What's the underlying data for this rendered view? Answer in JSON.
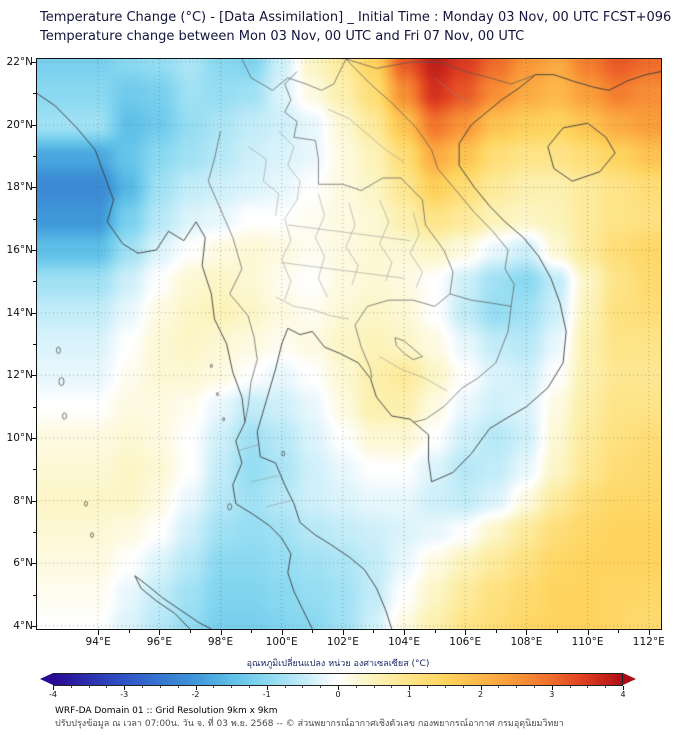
{
  "header": {
    "title_line1": "Temperature Change (°C) - [Data Assimilation] _ Initial Time : Monday 03 Nov, 00 UTC FCST+096",
    "title_line2": "Temperature change between Mon 03 Nov, 00 UTC and Fri 07 Nov, 00 UTC"
  },
  "axes": {
    "lon_range": [
      92.0,
      112.4
    ],
    "lat_range": [
      3.9,
      22.1
    ],
    "x_ticks": [
      {
        "v": 94,
        "label": "94°E"
      },
      {
        "v": 96,
        "label": "96°E"
      },
      {
        "v": 98,
        "label": "98°E"
      },
      {
        "v": 100,
        "label": "100°E"
      },
      {
        "v": 102,
        "label": "102°E"
      },
      {
        "v": 104,
        "label": "104°E"
      },
      {
        "v": 106,
        "label": "106°E"
      },
      {
        "v": 108,
        "label": "108°E"
      },
      {
        "v": 110,
        "label": "110°E"
      },
      {
        "v": 112,
        "label": "112°E"
      }
    ],
    "y_ticks": [
      {
        "v": 22,
        "label": "22°N"
      },
      {
        "v": 20,
        "label": "20°N"
      },
      {
        "v": 18,
        "label": "18°N"
      },
      {
        "v": 16,
        "label": "16°N"
      },
      {
        "v": 14,
        "label": "14°N"
      },
      {
        "v": 12,
        "label": "12°N"
      },
      {
        "v": 10,
        "label": "10°N"
      },
      {
        "v": 8,
        "label": "8°N"
      },
      {
        "v": 6,
        "label": "6°N"
      },
      {
        "v": 4,
        "label": "4°N"
      }
    ],
    "grid": true
  },
  "chart_data": {
    "type": "heatmap",
    "title": "Temperature Change (°C) - [Data Assimilation] _ Initial Time : Monday 03 Nov, 00 UTC FCST+096",
    "subtitle": "Temperature change between Mon 03 Nov, 00 UTC and Fri 07 Nov, 00 UTC",
    "x": [
      94,
      95,
      96,
      97,
      98,
      99,
      100,
      101,
      102,
      103,
      104,
      105,
      106,
      107,
      108,
      109,
      110,
      111,
      112
    ],
    "y": [
      22,
      21,
      20,
      19,
      18,
      17,
      16,
      15,
      14,
      13,
      12,
      11,
      10,
      9,
      8,
      7,
      6,
      5,
      4
    ],
    "values": [
      [
        -1.2,
        -1.0,
        -0.9,
        -0.7,
        -1.0,
        -1.1,
        -0.4,
        0.4,
        0.8,
        1.5,
        3.2,
        3.8,
        3.5,
        3.0,
        2.5,
        2.2,
        2.8,
        3.2,
        3.0
      ],
      [
        -1.0,
        -1.3,
        -1.2,
        -0.8,
        -0.9,
        -0.8,
        -0.3,
        0.2,
        0.6,
        1.2,
        2.6,
        3.6,
        3.2,
        2.6,
        2.2,
        2.0,
        2.4,
        2.8,
        2.6
      ],
      [
        -0.8,
        -1.5,
        -1.3,
        -0.9,
        -0.7,
        -0.5,
        -0.4,
        -0.2,
        0.3,
        0.8,
        1.8,
        2.9,
        2.5,
        1.8,
        1.6,
        1.5,
        1.8,
        2.2,
        2.4
      ],
      [
        -1.8,
        -1.4,
        -1.0,
        -0.8,
        -0.6,
        -0.4,
        -0.3,
        -0.2,
        0.2,
        0.5,
        1.2,
        2.2,
        1.8,
        1.2,
        1.0,
        1.0,
        1.2,
        1.5,
        1.8
      ],
      [
        -2.2,
        -1.6,
        -0.8,
        -0.5,
        -0.4,
        -0.3,
        -0.2,
        0.0,
        0.2,
        0.4,
        0.9,
        1.6,
        1.2,
        0.8,
        0.6,
        0.6,
        0.8,
        1.0,
        1.2
      ],
      [
        -2.0,
        -1.2,
        -0.6,
        -0.3,
        -0.2,
        0.0,
        0.0,
        0.1,
        0.2,
        0.3,
        0.6,
        1.0,
        0.8,
        0.5,
        0.4,
        0.5,
        0.8,
        1.0,
        1.1
      ],
      [
        -1.5,
        -0.8,
        -0.3,
        0.0,
        0.2,
        0.3,
        0.2,
        0.1,
        0.2,
        0.3,
        0.3,
        0.4,
        0.2,
        -0.2,
        -0.4,
        0.3,
        0.8,
        1.2,
        1.4
      ],
      [
        -0.8,
        -0.4,
        0.0,
        0.3,
        0.4,
        0.3,
        0.1,
        0.0,
        0.2,
        0.3,
        0.2,
        0.0,
        -0.4,
        -0.8,
        -1.0,
        -0.5,
        0.4,
        1.0,
        1.3
      ],
      [
        -0.5,
        -0.2,
        0.2,
        0.4,
        0.5,
        0.4,
        0.2,
        0.1,
        0.3,
        0.4,
        0.3,
        0.0,
        -0.5,
        -0.9,
        -0.8,
        -0.4,
        0.5,
        1.1,
        1.2
      ],
      [
        -0.3,
        0.0,
        0.3,
        0.4,
        0.3,
        0.2,
        0.1,
        0.2,
        0.4,
        0.5,
        0.4,
        0.2,
        -0.2,
        -0.5,
        -0.6,
        -0.2,
        0.6,
        1.0,
        1.0
      ],
      [
        -0.2,
        0.1,
        0.3,
        0.3,
        0.2,
        0.0,
        -0.2,
        0.0,
        0.3,
        0.6,
        0.8,
        0.4,
        0.0,
        -0.3,
        -0.4,
        0.0,
        0.6,
        0.9,
        0.9
      ],
      [
        0.0,
        0.2,
        0.2,
        0.1,
        -0.2,
        -0.5,
        -0.4,
        -0.2,
        0.2,
        0.6,
        0.6,
        0.2,
        -0.2,
        -0.4,
        -0.3,
        0.2,
        0.7,
        1.0,
        1.0
      ],
      [
        0.2,
        0.3,
        0.2,
        0.0,
        -0.4,
        -0.8,
        -0.6,
        -0.3,
        0.0,
        0.3,
        0.3,
        0.0,
        -0.4,
        -0.6,
        -0.4,
        0.3,
        0.8,
        1.1,
        1.2
      ],
      [
        0.3,
        0.4,
        0.3,
        0.0,
        -0.5,
        -0.9,
        -0.7,
        -0.4,
        -0.2,
        0.0,
        0.0,
        -0.3,
        -0.6,
        -0.5,
        -0.2,
        0.4,
        0.9,
        1.2,
        1.3
      ],
      [
        0.4,
        0.4,
        0.2,
        -0.2,
        -0.6,
        -0.8,
        -0.6,
        -0.4,
        -0.3,
        -0.2,
        -0.2,
        -0.4,
        -0.5,
        -0.3,
        0.2,
        0.8,
        1.2,
        1.4,
        1.4
      ],
      [
        0.3,
        0.2,
        0.0,
        -0.4,
        -0.8,
        -0.9,
        -0.8,
        -0.6,
        -0.5,
        -0.4,
        -0.3,
        -0.2,
        0.0,
        0.4,
        0.8,
        1.2,
        1.4,
        1.5,
        1.5
      ],
      [
        0.2,
        0.0,
        -0.3,
        -0.6,
        -1.0,
        -1.0,
        -0.9,
        -0.8,
        -0.7,
        -0.5,
        -0.2,
        0.2,
        0.5,
        0.8,
        1.1,
        1.4,
        1.5,
        1.5,
        1.5
      ],
      [
        0.1,
        -0.2,
        -0.5,
        -0.8,
        -1.1,
        -1.1,
        -1.0,
        -0.9,
        -0.8,
        -0.5,
        0.0,
        0.4,
        0.8,
        1.1,
        1.3,
        1.5,
        1.5,
        1.4,
        1.4
      ],
      [
        0.0,
        -0.3,
        -0.6,
        -0.9,
        -1.2,
        -1.2,
        -1.1,
        -1.0,
        -0.8,
        -0.4,
        0.2,
        0.6,
        1.0,
        1.2,
        1.4,
        1.5,
        1.5,
        1.4,
        1.3
      ]
    ],
    "colorbar": {
      "label": "อุณหภูมิเปลี่ยนแปลง หน่วย องศาเซลเซียส (°C)",
      "min": -4,
      "max": 4,
      "ticks": [
        -4,
        -3,
        -2,
        -1,
        0,
        1,
        2,
        3,
        4
      ],
      "stops": [
        [
          -4.0,
          "#2a0a94"
        ],
        [
          -3.0,
          "#2f55c7"
        ],
        [
          -2.0,
          "#3f97d8"
        ],
        [
          -1.5,
          "#5fc0e8"
        ],
        [
          -1.0,
          "#8ad9f1"
        ],
        [
          -0.5,
          "#c2ecf8"
        ],
        [
          -0.15,
          "#eef9fd"
        ],
        [
          0.0,
          "#ffffff"
        ],
        [
          0.15,
          "#fdfbe8"
        ],
        [
          0.5,
          "#fcf3b9"
        ],
        [
          1.0,
          "#fee488"
        ],
        [
          1.5,
          "#fed45f"
        ],
        [
          2.0,
          "#fdb84a"
        ],
        [
          2.5,
          "#f99738"
        ],
        [
          3.0,
          "#f06d2b"
        ],
        [
          3.5,
          "#dc3b20"
        ],
        [
          4.0,
          "#ac0e15"
        ]
      ]
    }
  },
  "footer": {
    "line1": "WRF-DA Domain 01 :: Grid Resolution 9km x 9km",
    "line2": "ปรับปรุงข้อมูล ณ เวลา 07:00น. วัน จ. ที่ 03 พ.ย. 2568 -- © ส่วนพยากรณ์อากาศเชิงตัวเลข กองพยากรณ์อากาศ กรมอุตุนิยมวิทยา"
  }
}
